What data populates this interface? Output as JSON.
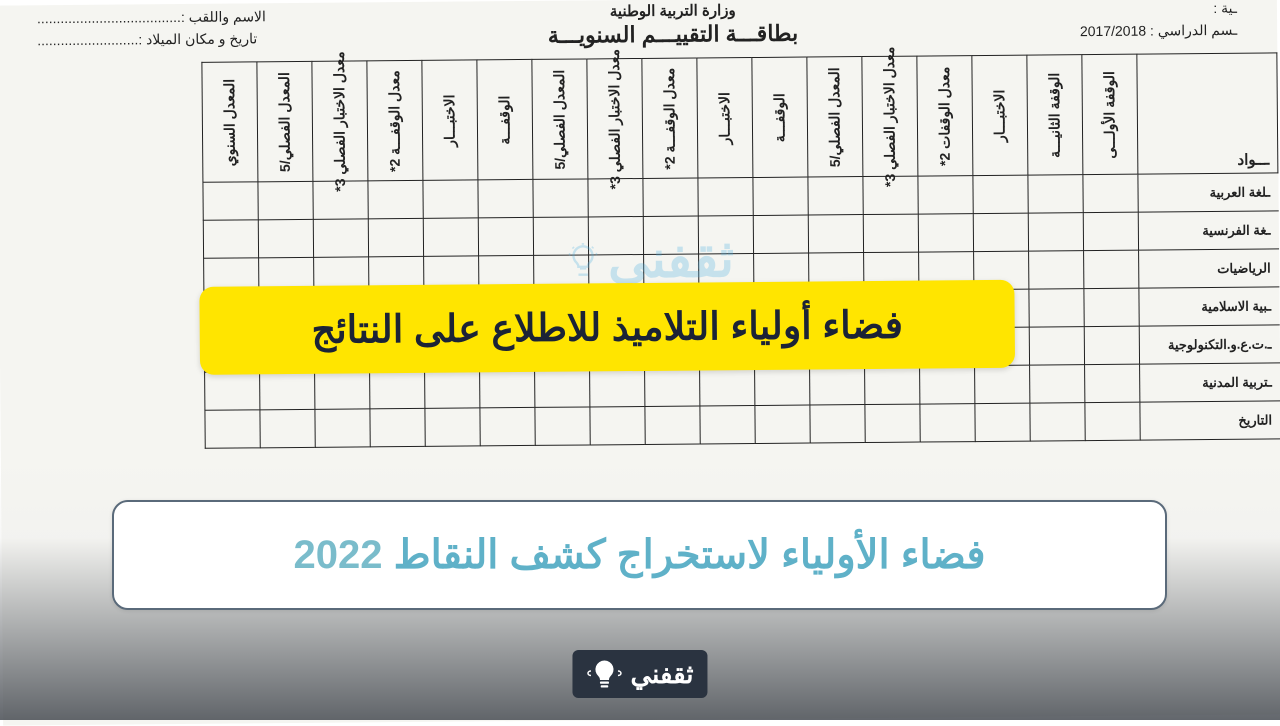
{
  "header": {
    "ministry": "وزارة التربية الوطنية",
    "card_title": "بطاقـــة التقييـــم السنويـــة",
    "name_label": "الاسم واللقب :.....................................",
    "dob_label": "تاريخ و مكان الميلاد :..........................",
    "year_label": "ـسم الدراسي : 2017/2018",
    "school_label": "ـية :"
  },
  "table": {
    "subject_header": "ـــواد",
    "col_groups": [
      [
        "الوقفة الأولـــى",
        "الوقفة الثانيـــة",
        "الاختبـــار",
        "معدل الوقفات 2*",
        "معدل الاختبار الفصلي 3*",
        "المعدل الفصلي/5"
      ],
      [
        "الوقفـــة",
        "الاختبـــار",
        "معدل الوقفـــة 2*",
        "معدل الاختبار الفصلي 3*",
        "المعدل الفصلي/5"
      ],
      [
        "الوقفـــة",
        "الاختبـــار",
        "معدل الوقفـــة 2*",
        "معدل الاختبار الفصلي 3*",
        "المعدل الفصلي/5"
      ],
      [
        "المعدل السنوي"
      ]
    ],
    "subjects": [
      "ـلغة العربية",
      "ـغة الفرنسية",
      "الرياضيات",
      "ـبية الاسلامية",
      "ـ.ت.ع.و.التكنولوجية",
      "ـتربية المدنية",
      "التاريخ"
    ]
  },
  "yellow_banner": "فضاء أولياء التلاميذ للاطلاع على النتائج",
  "watermark_text": "ثقفني",
  "caption": {
    "text": "فضاء الأولياء لاستخراج كشف النقاط",
    "year": "2022"
  },
  "footer_logo": "ثقفني",
  "colors": {
    "yellow": "#ffe500",
    "banner_text": "#1b2336",
    "caption_text": "#5fb1c8",
    "border": "#5a6a7a",
    "watermark": "#4db0e0"
  }
}
